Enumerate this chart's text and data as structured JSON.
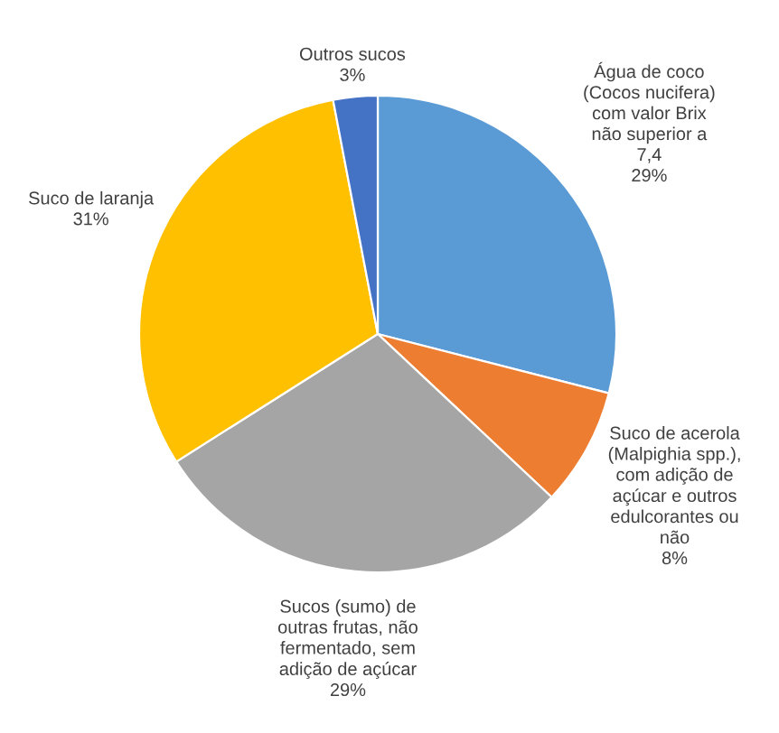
{
  "chart_data": {
    "type": "pie",
    "categories": [
      "Água de coco\n(Cocos nucifera)\ncom valor Brix\nnão superior a\n7,4",
      "Suco de acerola\n(Malpighia spp.),\ncom adição de\naçúcar e outros\nedulcorantes ou\nnão",
      "Sucos (sumo) de\noutras frutas, não\nfermentado, sem\nadição de açúcar",
      "Suco de laranja",
      "Outros sucos"
    ],
    "values": [
      29,
      8,
      29,
      31,
      3
    ],
    "colors": [
      "#5b9bd5",
      "#ed7d31",
      "#a5a5a5",
      "#ffc000",
      "#4472c4"
    ],
    "value_labels": [
      "29%",
      "8%",
      "29%",
      "31%",
      "3%"
    ]
  }
}
